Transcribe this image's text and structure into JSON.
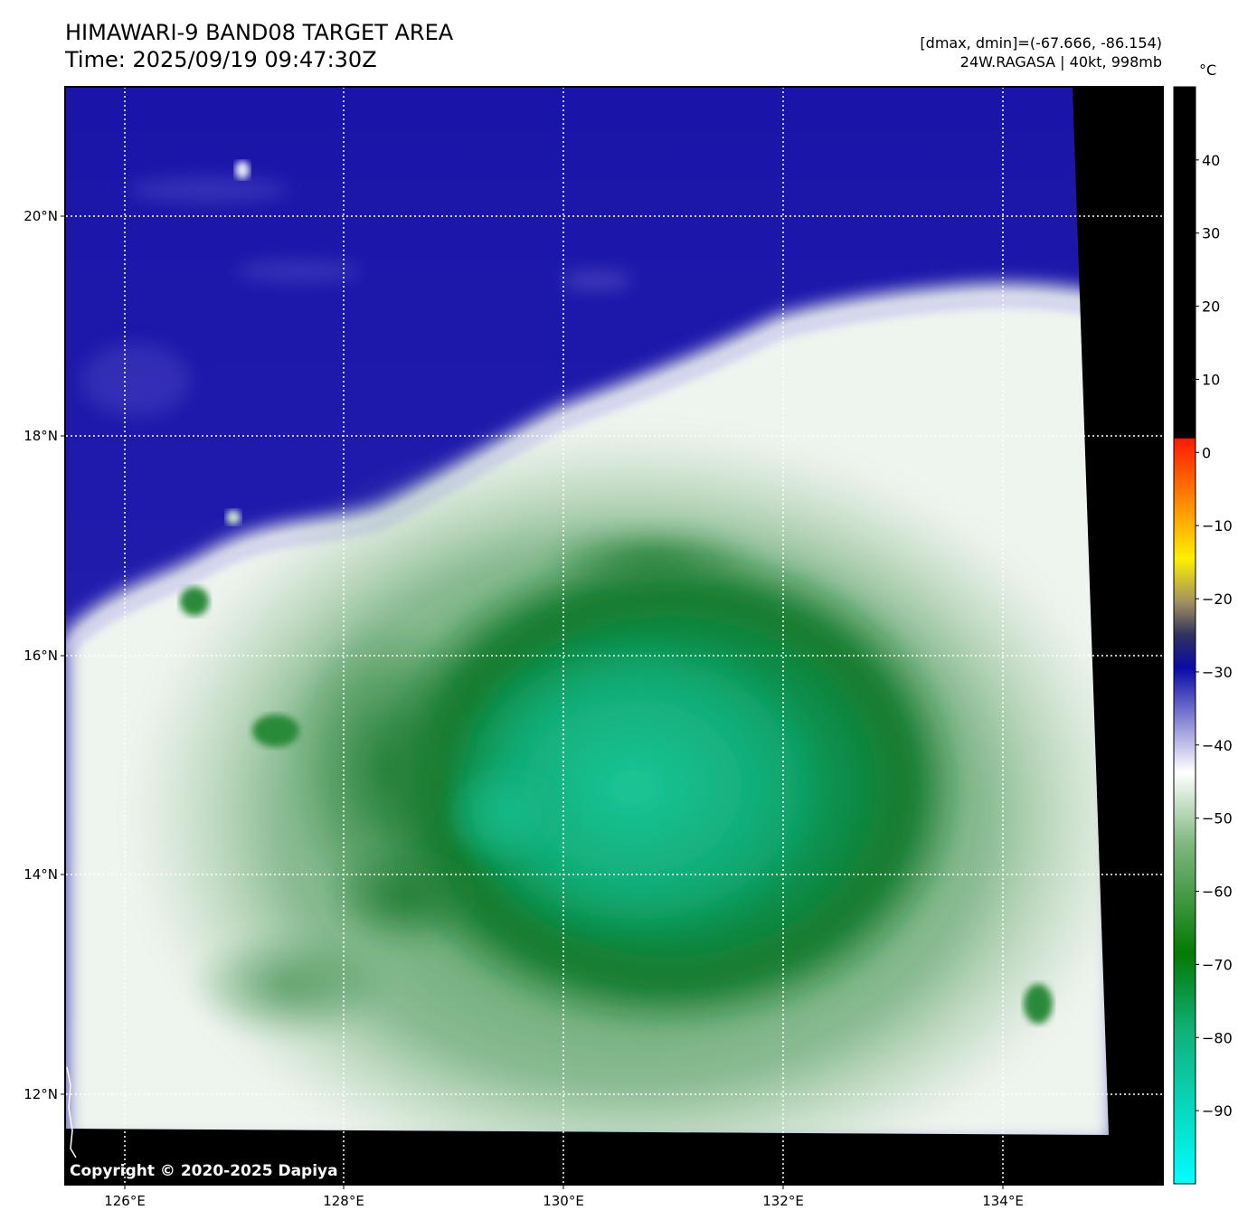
{
  "header": {
    "title": "HIMAWARI-9 BAND08 TARGET AREA",
    "time": "Time: 2025/09/19 09:47:30Z",
    "range": "[dmax, dmin]=(-67.666, -86.154)",
    "storm": "24W.RAGASA | 40kt, 998mb"
  },
  "map": {
    "lon_labels": [
      "126°E",
      "128°E",
      "130°E",
      "132°E",
      "134°E"
    ],
    "lat_labels": [
      "20°N",
      "18°N",
      "16°N",
      "14°N",
      "12°N"
    ],
    "copyright": "Copyright © 2020-2025 Dapiya"
  },
  "colorbar": {
    "unit": "°C",
    "tick_labels": [
      "40",
      "30",
      "20",
      "10",
      "0",
      "−10",
      "−20",
      "−30",
      "−40",
      "−50",
      "−60",
      "−70",
      "−80",
      "−90"
    ],
    "min": -100,
    "max": 50
  },
  "colors": {
    "dry_blue": "#1a14a8",
    "cloud_white": "#f4f7f4",
    "cold_green": "#137a28",
    "coldest_teal": "#17c491",
    "nodata": "#000000"
  }
}
